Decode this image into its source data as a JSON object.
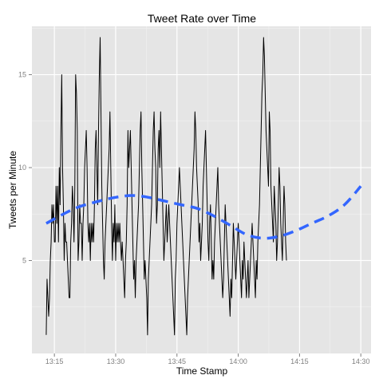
{
  "chart_data": {
    "type": "line",
    "title": "Tweet Rate over Time",
    "xlabel": "Time Stamp",
    "ylabel": "Tweets per Minute",
    "x_tick_labels": [
      "13:15",
      "13:30",
      "13:45",
      "14:00",
      "14:15",
      "14:30"
    ],
    "x_tick_minutes": [
      795,
      810,
      825,
      840,
      855,
      870
    ],
    "xlim_minutes": [
      789.5,
      872.5
    ],
    "y_ticks": [
      5,
      10,
      15
    ],
    "ylim": [
      0,
      17.6
    ],
    "grid": true,
    "colors": {
      "panel": "#e5e5e5",
      "grid_major": "#ffffff",
      "grid_minor": "#f2f2f2",
      "line": "#000000",
      "smooth": "#3366ff",
      "tick_text": "#7f7f7f"
    },
    "series": [
      {
        "start_minute": 793,
        "step_minutes": 0.2,
        "values": [
          1,
          4,
          3,
          2,
          3,
          5,
          6,
          8,
          7,
          8,
          6,
          6,
          9,
          7,
          9,
          6,
          10,
          8,
          12,
          15,
          10,
          8,
          5,
          7,
          6,
          6,
          5,
          4,
          3,
          3,
          6,
          7,
          9,
          8,
          6,
          9,
          15,
          14,
          12,
          5,
          6,
          8,
          7,
          7,
          5,
          7,
          8,
          10,
          11,
          12,
          10,
          7,
          6,
          7,
          5,
          7,
          6,
          7,
          6,
          8,
          11,
          12,
          10,
          8,
          12,
          15,
          17,
          13,
          9,
          7,
          5,
          4,
          6,
          7,
          8,
          9,
          10,
          11,
          13,
          10,
          7,
          5,
          7,
          6,
          8,
          5,
          7,
          6,
          7,
          6,
          7,
          6,
          5,
          6,
          5,
          4,
          3,
          5,
          6,
          8,
          12,
          10,
          11,
          12,
          10,
          8,
          6,
          4,
          5,
          3,
          5,
          6,
          7,
          8,
          10,
          12,
          13,
          10,
          8,
          6,
          4,
          5,
          4,
          3,
          1,
          4,
          5,
          6,
          7,
          8,
          10,
          12,
          13,
          11,
          10,
          7,
          8,
          11,
          12,
          10,
          13,
          11,
          9,
          7,
          5,
          6,
          7,
          8,
          6,
          7,
          8,
          7,
          6,
          5,
          4,
          3,
          2,
          1,
          4,
          5,
          7,
          8,
          9,
          10,
          9,
          8,
          7,
          6,
          5,
          4,
          3,
          2,
          1,
          3,
          4,
          5,
          6,
          7,
          8,
          9,
          10,
          11,
          13,
          12,
          10,
          9,
          8,
          6,
          7,
          5,
          6,
          7,
          9,
          10,
          11,
          12,
          10,
          8,
          6,
          5,
          7,
          8,
          6,
          4,
          5,
          4,
          6,
          7,
          8,
          9,
          10,
          8,
          7,
          6,
          5,
          4,
          3,
          4,
          6,
          8,
          7,
          6,
          5,
          4,
          3,
          2,
          4,
          3,
          5,
          7,
          6,
          5,
          4,
          5,
          6,
          7,
          6,
          5,
          4,
          3,
          5,
          4,
          6,
          5,
          4,
          3,
          4,
          5,
          3,
          4,
          5,
          6,
          7,
          6,
          5,
          4,
          3,
          5,
          4,
          6,
          7,
          8,
          10,
          12,
          14,
          15,
          17,
          16,
          14,
          12,
          11,
          10,
          9,
          13,
          12,
          9,
          8,
          7,
          6,
          9,
          8,
          7,
          5,
          6,
          8,
          10,
          9,
          7,
          6,
          5,
          7,
          9,
          8,
          6,
          5
        ]
      },
      {
        "type": "smooth",
        "x_minutes": [
          793,
          800,
          806,
          810,
          814,
          818,
          822,
          826,
          830,
          834,
          838,
          842,
          846,
          850,
          854,
          858,
          862,
          866,
          870
        ],
        "values": [
          7.0,
          7.8,
          8.2,
          8.4,
          8.5,
          8.4,
          8.2,
          8.0,
          7.8,
          7.4,
          6.9,
          6.4,
          6.2,
          6.3,
          6.6,
          7.0,
          7.4,
          8.0,
          9.0
        ]
      }
    ]
  }
}
